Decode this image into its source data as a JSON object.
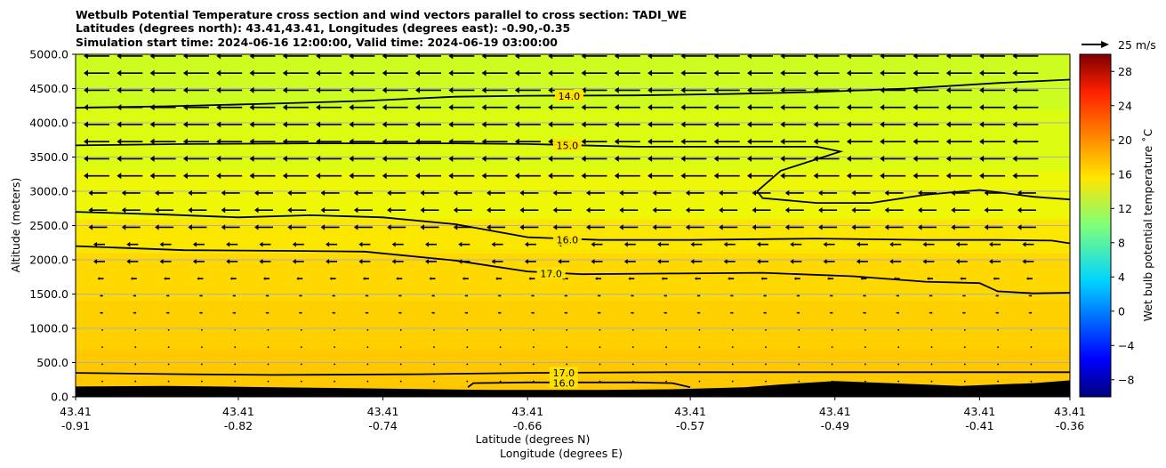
{
  "chart_data": {
    "type": "contour",
    "title_lines": [
      "Wetbulb Potential Temperature cross section and wind vectors parallel to cross section: TADI_WE",
      "Latitudes (degrees north): 43.41,43.41, Longitudes (degrees east): -0.90,-0.35",
      "Simulation start time: 2024-06-16 12:00:00, Valid time: 2024-06-19 03:00:00"
    ],
    "ylabel": "Altitude (meters)",
    "xlabel_lat": "Latitude (degrees N)",
    "xlabel_lon": "Longitude (degrees E)",
    "ylim": [
      0,
      5000
    ],
    "yticks": [
      "0.0",
      "500.0",
      "1000.0",
      "1500.0",
      "2000.0",
      "2500.0",
      "3000.0",
      "3500.0",
      "4000.0",
      "4500.0",
      "5000.0"
    ],
    "xlim": [
      -0.91,
      -0.36
    ],
    "xticks": [
      {
        "lon": -0.91,
        "lat_label": "43.41",
        "lon_label": "-0.91"
      },
      {
        "lon": -0.82,
        "lat_label": "43.41",
        "lon_label": "-0.82"
      },
      {
        "lon": -0.74,
        "lat_label": "43.41",
        "lon_label": "-0.74"
      },
      {
        "lon": -0.66,
        "lat_label": "43.41",
        "lon_label": "-0.66"
      },
      {
        "lon": -0.57,
        "lat_label": "43.41",
        "lon_label": "-0.57"
      },
      {
        "lon": -0.49,
        "lat_label": "43.41",
        "lon_label": "-0.49"
      },
      {
        "lon": -0.41,
        "lat_label": "43.41",
        "lon_label": "-0.41"
      },
      {
        "lon": -0.36,
        "lat_label": "43.41",
        "lon_label": "-0.36"
      }
    ],
    "colorbar": {
      "label": "Wet bulb potential temperature ˚C",
      "range": [
        -10,
        30
      ],
      "ticks": [
        "-8",
        "-4",
        "0",
        "4",
        "8",
        "12",
        "16",
        "20",
        "24",
        "28"
      ]
    },
    "quiver_key": {
      "label": "25 m/s",
      "speed": 25
    },
    "background_layers": [
      {
        "zmin": 0,
        "zmax": 700,
        "color": "#ffc800"
      },
      {
        "zmin": 700,
        "zmax": 1400,
        "color": "#ffd000"
      },
      {
        "zmin": 1400,
        "zmax": 2100,
        "color": "#ffd800"
      },
      {
        "zmin": 2100,
        "zmax": 2600,
        "color": "#fbe600"
      },
      {
        "zmin": 2600,
        "zmax": 3300,
        "color": "#edf706"
      },
      {
        "zmin": 3300,
        "zmax": 4200,
        "color": "#dcfc12"
      },
      {
        "zmin": 4200,
        "zmax": 5000,
        "color": "#cdfd20"
      }
    ],
    "contours": [
      {
        "level": "14.0",
        "label_x": -0.637,
        "label_z": 4390,
        "points": [
          [
            -0.91,
            4220
          ],
          [
            -0.86,
            4240
          ],
          [
            -0.8,
            4280
          ],
          [
            -0.75,
            4320
          ],
          [
            -0.7,
            4380
          ],
          [
            -0.66,
            4395
          ],
          [
            -0.6,
            4400
          ],
          [
            -0.55,
            4420
          ],
          [
            -0.5,
            4450
          ],
          [
            -0.45,
            4500
          ],
          [
            -0.4,
            4580
          ],
          [
            -0.36,
            4630
          ]
        ]
      },
      {
        "level": "15.0",
        "label_x": -0.638,
        "label_z": 3670,
        "points": [
          [
            -0.91,
            3670
          ],
          [
            -0.85,
            3690
          ],
          [
            -0.78,
            3700
          ],
          [
            -0.7,
            3700
          ],
          [
            -0.66,
            3690
          ],
          [
            -0.6,
            3650
          ],
          [
            -0.55,
            3650
          ],
          [
            -0.5,
            3650
          ],
          [
            -0.487,
            3580
          ],
          [
            -0.52,
            3300
          ],
          [
            -0.533,
            3000
          ],
          [
            -0.53,
            2900
          ],
          [
            -0.5,
            2830
          ],
          [
            -0.47,
            2830
          ],
          [
            -0.44,
            2950
          ],
          [
            -0.41,
            3020
          ],
          [
            -0.38,
            2920
          ],
          [
            -0.36,
            2880
          ]
        ]
      },
      {
        "level": "16.0",
        "label_x": -0.638,
        "label_z": 2290,
        "points": [
          [
            -0.91,
            2700
          ],
          [
            -0.86,
            2660
          ],
          [
            -0.82,
            2620
          ],
          [
            -0.78,
            2650
          ],
          [
            -0.74,
            2620
          ],
          [
            -0.7,
            2520
          ],
          [
            -0.66,
            2330
          ],
          [
            -0.62,
            2290
          ],
          [
            -0.57,
            2290
          ],
          [
            -0.5,
            2310
          ],
          [
            -0.44,
            2290
          ],
          [
            -0.4,
            2290
          ],
          [
            -0.37,
            2280
          ],
          [
            -0.36,
            2240
          ]
        ]
      },
      {
        "level": "17.0",
        "label_x": -0.647,
        "label_z": 1800,
        "points": [
          [
            -0.91,
            2200
          ],
          [
            -0.85,
            2140
          ],
          [
            -0.79,
            2130
          ],
          [
            -0.75,
            2120
          ],
          [
            -0.7,
            1990
          ],
          [
            -0.66,
            1830
          ],
          [
            -0.63,
            1790
          ],
          [
            -0.58,
            1800
          ],
          [
            -0.53,
            1810
          ],
          [
            -0.48,
            1760
          ],
          [
            -0.44,
            1680
          ],
          [
            -0.41,
            1660
          ],
          [
            -0.4,
            1540
          ],
          [
            -0.38,
            1510
          ],
          [
            -0.36,
            1520
          ]
        ]
      },
      {
        "level": "17.0",
        "label_x": -0.64,
        "label_z": 350,
        "points": [
          [
            -0.91,
            350
          ],
          [
            -0.85,
            330
          ],
          [
            -0.8,
            320
          ],
          [
            -0.72,
            330
          ],
          [
            -0.66,
            350
          ],
          [
            -0.58,
            360
          ],
          [
            -0.5,
            360
          ],
          [
            -0.44,
            360
          ],
          [
            -0.36,
            360
          ]
        ]
      },
      {
        "level": "16.0",
        "label_x": -0.64,
        "label_z": 200,
        "points": [
          [
            -0.693,
            140
          ],
          [
            -0.69,
            200
          ],
          [
            -0.66,
            210
          ],
          [
            -0.6,
            210
          ],
          [
            -0.58,
            200
          ],
          [
            -0.57,
            140
          ]
        ]
      }
    ],
    "terrain": [
      [
        -0.91,
        150
      ],
      [
        -0.86,
        160
      ],
      [
        -0.8,
        140
      ],
      [
        -0.74,
        120
      ],
      [
        -0.68,
        100
      ],
      [
        -0.62,
        100
      ],
      [
        -0.58,
        110
      ],
      [
        -0.54,
        140
      ],
      [
        -0.52,
        180
      ],
      [
        -0.49,
        230
      ],
      [
        -0.46,
        200
      ],
      [
        -0.42,
        160
      ],
      [
        -0.38,
        200
      ],
      [
        -0.36,
        240
      ]
    ]
  }
}
